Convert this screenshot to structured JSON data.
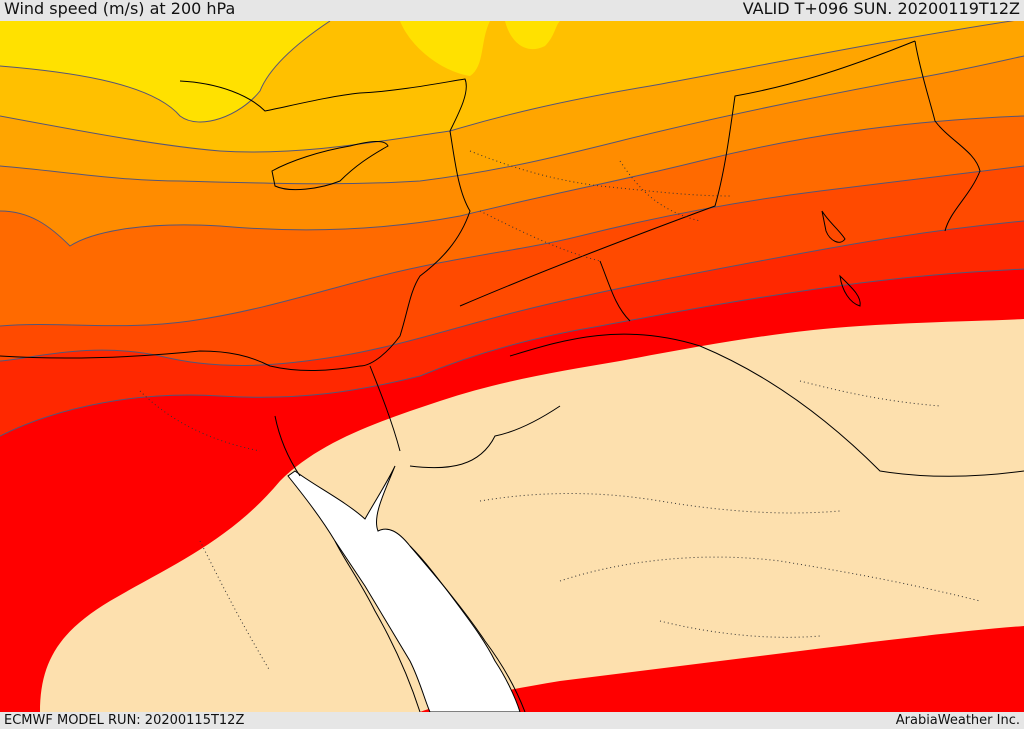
{
  "header": {
    "title": "Wind speed (m/s) at 200 hPa",
    "valid": "VALID T+096 SUN. 20200119T12Z"
  },
  "footer": {
    "model_run": "ECMWF MODEL RUN: 20200115T12Z",
    "brand": "ArabiaWeather Inc."
  },
  "colors": {
    "band_yellow": "#ffe100",
    "band_gold": "#ffc000",
    "band_amber": "#ffa500",
    "band_orange": "#ff8c00",
    "band_darkorange": "#ff6a00",
    "band_redorange": "#ff4a00",
    "band_orangered": "#ff2800",
    "band_red": "#ff0000",
    "calm": "#fde0ae",
    "sea_white": "#ffffff",
    "coast": "#000000",
    "contour": "#555577"
  },
  "map": {
    "projection": "regional",
    "region": "Eastern Mediterranean / Levant / Arabian Peninsula"
  }
}
